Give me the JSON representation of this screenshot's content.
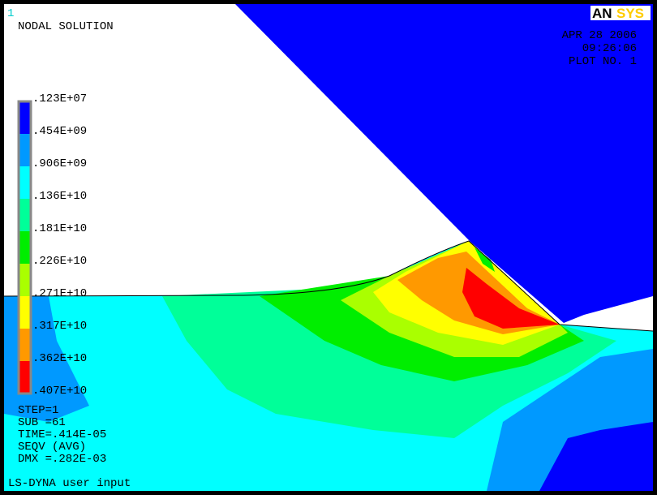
{
  "window_number": "1",
  "title": "NODAL SOLUTION",
  "logo": {
    "part1": "AN",
    "part2": "SYS"
  },
  "date": "APR 28 2006",
  "time": "09:26:06",
  "plot_number": "PLOT NO.   1",
  "legend": {
    "labels": [
      ".123E+07",
      ".454E+09",
      ".906E+09",
      ".136E+10",
      ".181E+10",
      ".226E+10",
      ".271E+10",
      ".317E+10",
      ".362E+10",
      ".407E+10"
    ],
    "colors": [
      "#0000ff",
      "#0099ff",
      "#00ffff",
      "#00ff99",
      "#00ee00",
      "#aaff00",
      "#ffff00",
      "#ff9900",
      "#ff0000"
    ]
  },
  "info": [
    "STEP=1",
    "SUB =61",
    "TIME=.414E-05",
    "SEQV      (AVG)",
    "DMX =.282E-03"
  ],
  "footer": "LS-DYNA user input"
}
